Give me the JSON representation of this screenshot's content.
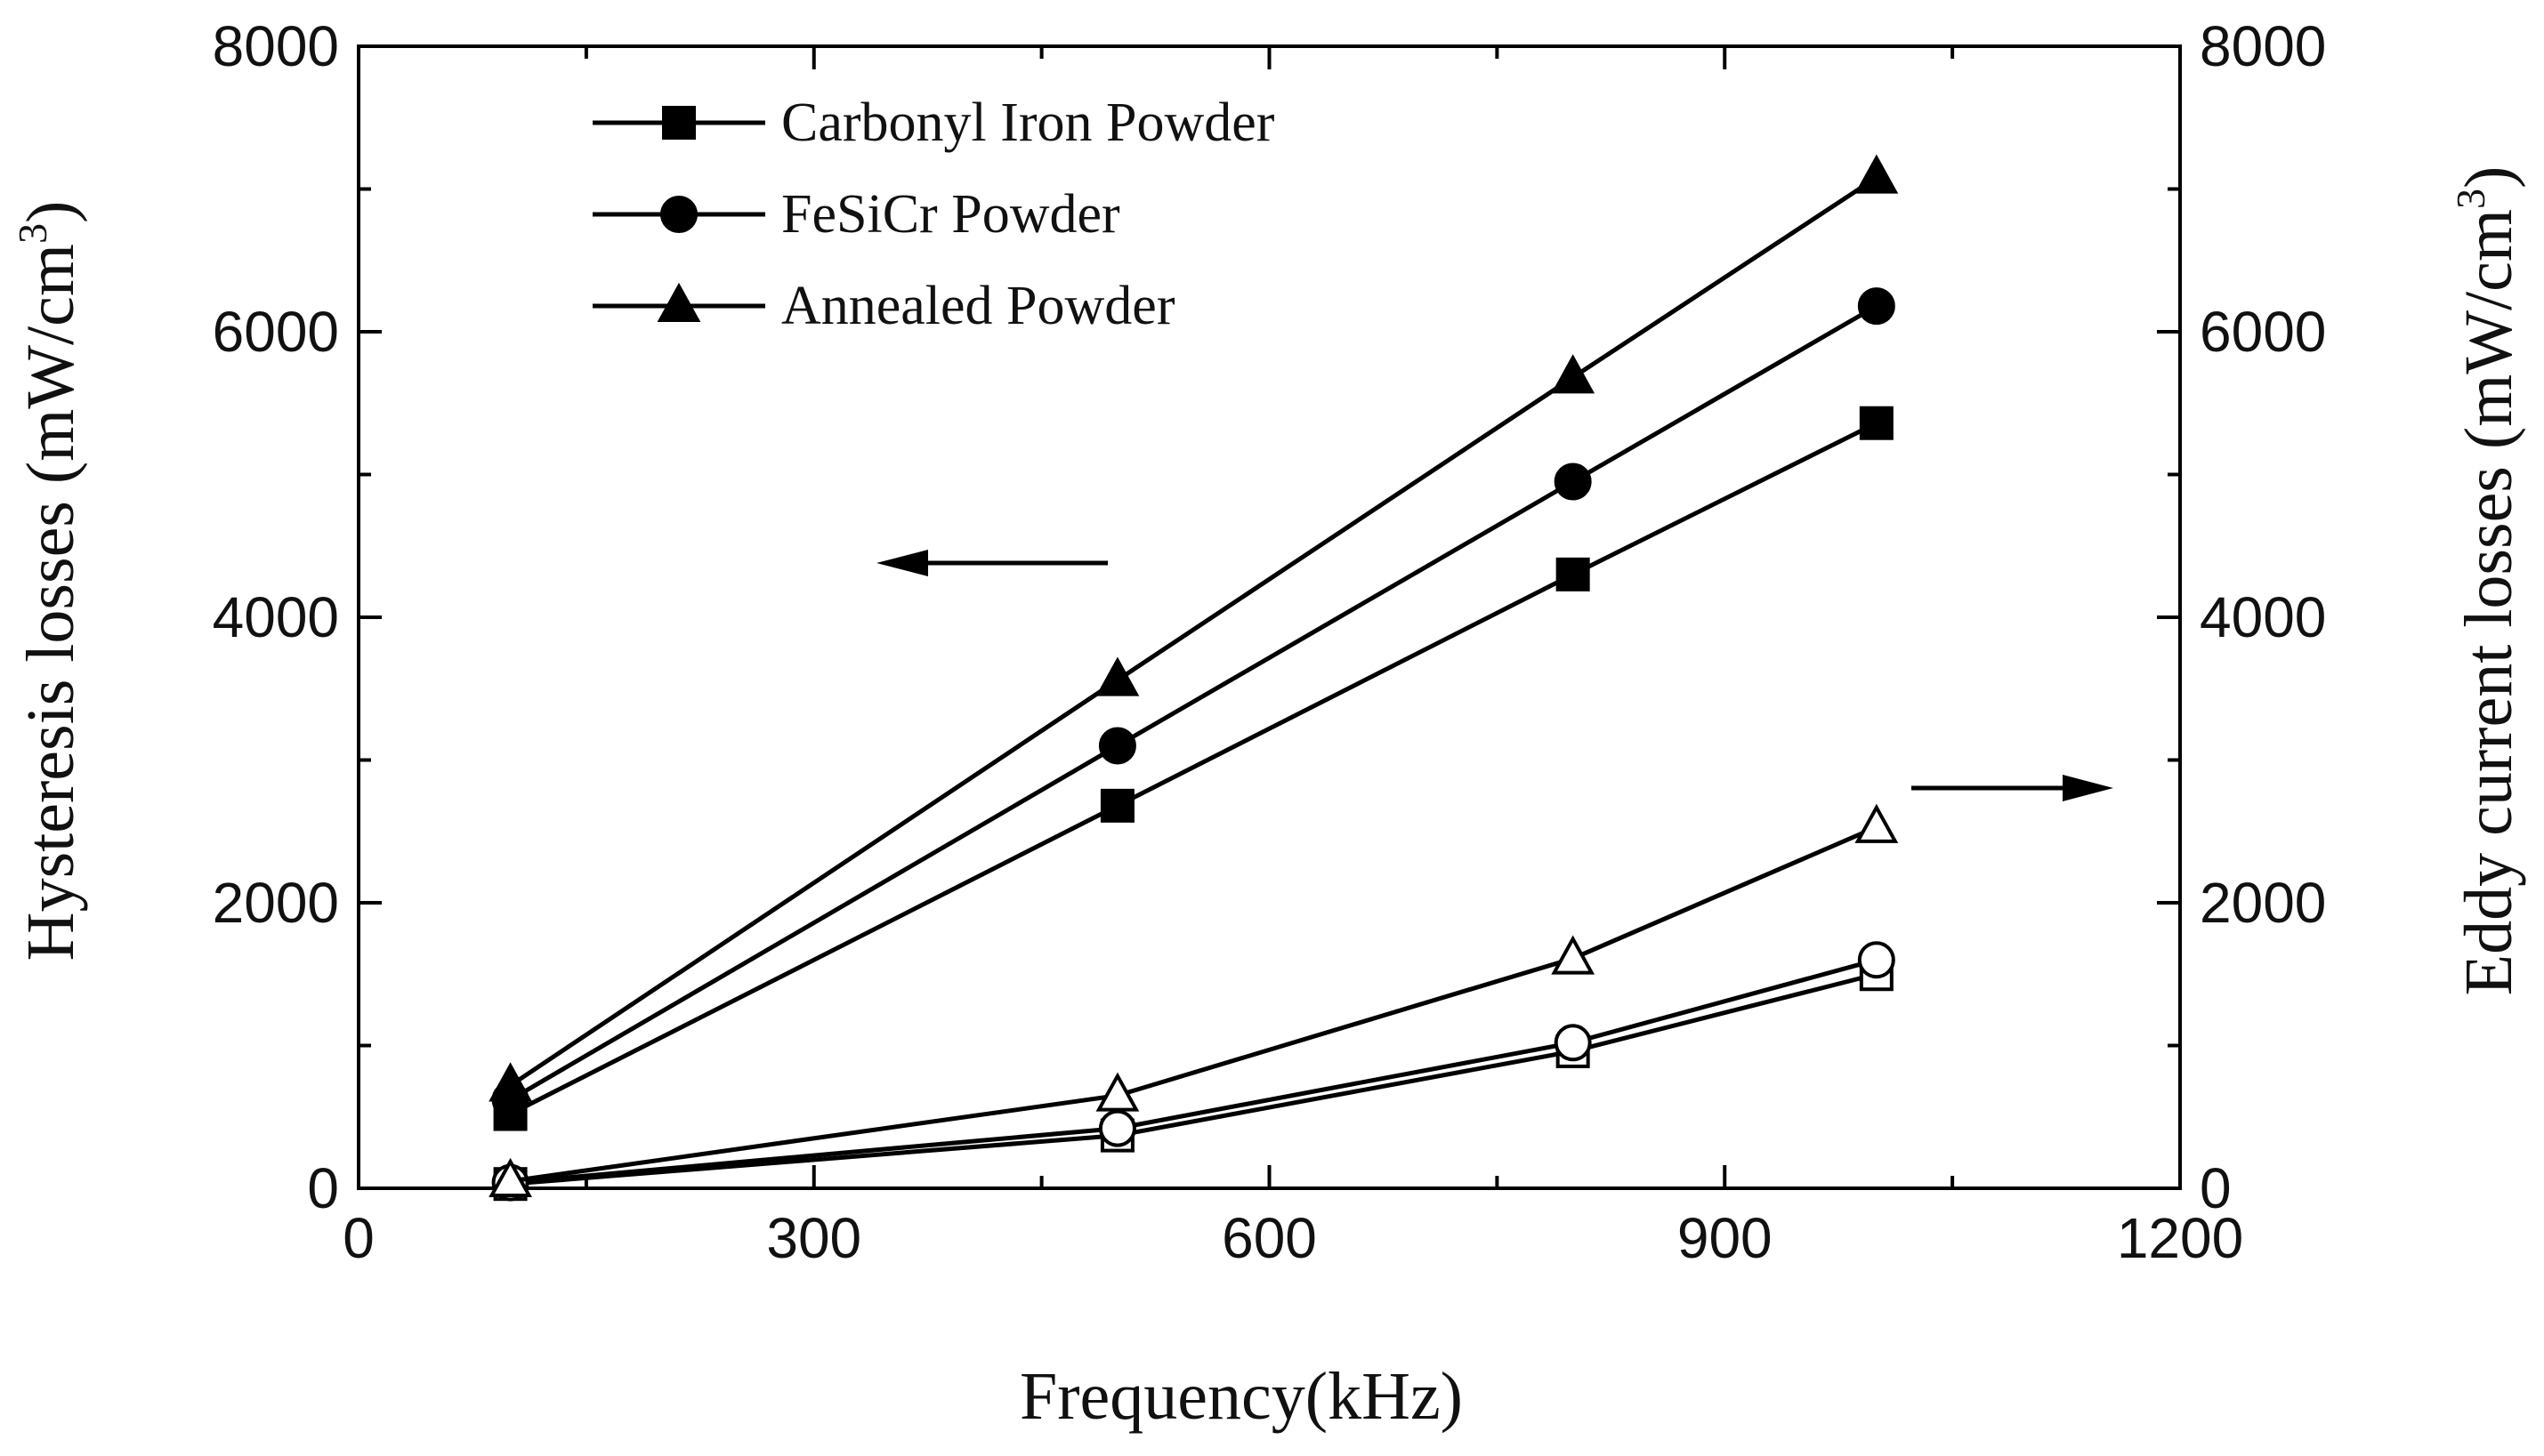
{
  "chart_data": {
    "type": "line",
    "xlabel": "Frequency(kHz)",
    "ylabel_left": "Hysteresis losses (mW/cm",
    "ylabel_right": "Eddy current losses (mW/cm",
    "ylabel_superscript": "3",
    "ylabel_close": ")",
    "xlim": [
      0,
      1200
    ],
    "ylim": [
      0,
      8000
    ],
    "x_ticks": [
      0,
      300,
      600,
      900,
      1200
    ],
    "x_tick_labels": [
      "0",
      "300",
      "600",
      "900",
      "1200"
    ],
    "y_ticks": [
      0,
      2000,
      4000,
      6000,
      8000
    ],
    "y_tick_labels": [
      "0",
      "2000",
      "4000",
      "6000",
      "8000"
    ],
    "x": [
      100,
      500,
      800,
      1000
    ],
    "legend_position": "top-left",
    "series": [
      {
        "name": "Carbonyl Iron Powder",
        "group": "hysteresis",
        "axis": "left",
        "marker": "square",
        "filled": true,
        "values": [
          520,
          2680,
          4300,
          5360
        ]
      },
      {
        "name": "FeSiCr Powder",
        "group": "hysteresis",
        "axis": "left",
        "marker": "circle",
        "filled": true,
        "values": [
          620,
          3100,
          4950,
          6180
        ]
      },
      {
        "name": "Annealed Powder",
        "group": "hysteresis",
        "axis": "left",
        "marker": "triangle",
        "filled": true,
        "values": [
          720,
          3560,
          5680,
          7080
        ]
      },
      {
        "name": "Carbonyl Iron Powder",
        "group": "eddy",
        "axis": "right",
        "marker": "square",
        "filled": false,
        "values": [
          30,
          370,
          960,
          1500
        ]
      },
      {
        "name": "FeSiCr Powder",
        "group": "eddy",
        "axis": "right",
        "marker": "circle",
        "filled": false,
        "values": [
          40,
          420,
          1020,
          1600
        ]
      },
      {
        "name": "Annealed Powder",
        "group": "eddy",
        "axis": "right",
        "marker": "triangle",
        "filled": false,
        "values": [
          50,
          650,
          1610,
          2530
        ]
      }
    ],
    "legend": [
      "Carbonyl Iron Powder",
      "FeSiCr Powder",
      "Annealed Powder"
    ],
    "annotations": [
      {
        "name": "left-arrow",
        "direction": "left",
        "points_to": "Hysteresis losses axis"
      },
      {
        "name": "right-arrow",
        "direction": "right",
        "points_to": "Eddy current losses axis"
      }
    ]
  },
  "colors": {
    "line": "#000000",
    "marker_fill": "#000000",
    "marker_open_fill": "#ffffff",
    "background": "#ffffff"
  }
}
